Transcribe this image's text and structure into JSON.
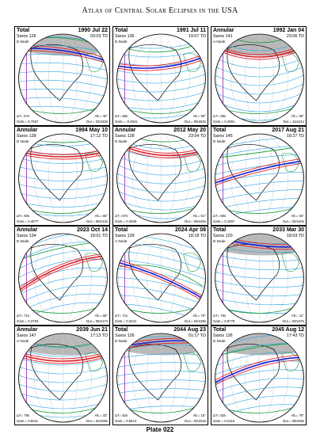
{
  "header": {
    "title": "Atlas of Central Solar Eclipses in the USA"
  },
  "footer": {
    "plate": "Plate 022"
  },
  "colors": {
    "path_total": "#1e1ed2",
    "path_annular": "#e0202a",
    "umbra": "#e0202a",
    "contact": "#20a040",
    "penumbra": "#a020c0",
    "iso": "#2aa6e6",
    "globe_night": "#b8b8b8"
  },
  "panels": [
    {
      "type": "Total",
      "date": "1990 Jul 22",
      "saros": "Saros 126",
      "td": "03:03 TD",
      "node": "D.Node",
      "dt": "ΔT= 57s",
      "alt": "Alt.= 40°",
      "gamma": "Gam.= 0.7597",
      "dur": "Dur.= 02m33s"
    },
    {
      "type": "Total",
      "date": "1991 Jul 11",
      "saros": "Saros 136",
      "td": "19:07 TD",
      "node": "D.Node",
      "dt": "ΔT= 58s",
      "alt": "Alt.= 90°",
      "gamma": "Gam.= -0.0041",
      "dur": "Dur.= 06m53s"
    },
    {
      "type": "Annular",
      "date": "1992 Jan 04",
      "saros": "Saros 141",
      "td": "23:06 TD",
      "node": "A.Node",
      "dt": "ΔT= 58s",
      "alt": "Alt.= 66°",
      "gamma": "Gam.= 0.4091",
      "dur": "Dur.= 11m41s"
    },
    {
      "type": "Annular",
      "date": "1994 May 10",
      "saros": "Saros 128",
      "td": "17:12 TD",
      "node": "D.Node",
      "dt": "ΔT= 60s",
      "alt": "Alt.= 66°",
      "gamma": "Gam.= 0.4077",
      "dur": "Dur.= 06m13s"
    },
    {
      "type": "Annular",
      "date": "2012 May 20",
      "saros": "Saros 128",
      "td": "23:54 TD",
      "node": "D.Node",
      "dt": "ΔT= 67s",
      "alt": "Alt.= 61°",
      "gamma": "Gam.= 0.4828",
      "dur": "Dur.= 05m46s"
    },
    {
      "type": "Total",
      "date": "2017 Aug 21",
      "saros": "Saros 145",
      "td": "18:27 TD",
      "node": "D.Node",
      "dt": "ΔT= 69s",
      "alt": "Alt.= 64°",
      "gamma": "Gam.= 0.4367",
      "dur": "Dur.= 02m40s"
    },
    {
      "type": "Annular",
      "date": "2023 Oct 14",
      "saros": "Saros 134",
      "td": "18:01 TD",
      "node": "D.Node",
      "dt": "ΔT= 71s",
      "alt": "Alt.= 68°",
      "gamma": "Gam.= 0.3753",
      "dur": "Dur.= 05m17s"
    },
    {
      "type": "Total",
      "date": "2024 Apr 08",
      "saros": "Saros 139",
      "td": "18:18 TD",
      "node": "A.Node",
      "dt": "ΔT= 71s",
      "alt": "Alt.= 70°",
      "gamma": "Gam.= 0.3431",
      "dur": "Dur.= 04m28s"
    },
    {
      "type": "Total",
      "date": "2033 Mar 30",
      "saros": "Saros 120",
      "td": "18:03 TD",
      "node": "D.Node",
      "dt": "ΔT= 75s",
      "alt": "Alt.= 11°",
      "gamma": "Gam.= 0.9778",
      "dur": "Dur.= 02m37s"
    },
    {
      "type": "Annular",
      "date": "2039 Jun 21",
      "saros": "Saros 147",
      "td": "17:13 TD",
      "node": "A.Node",
      "dt": "ΔT= 79s",
      "alt": "Alt.= 33°",
      "gamma": "Gam.= 0.8311",
      "dur": "Dur.= 04m05s"
    },
    {
      "type": "Total",
      "date": "2044 Aug 23",
      "saros": "Saros 126",
      "td": "01:17 TD",
      "node": "D.Node",
      "dt": "ΔT= 82s",
      "alt": "Alt.= 15°",
      "gamma": "Gam.= 0.9613",
      "dur": "Dur.= 02m04s"
    },
    {
      "type": "Total",
      "date": "2045 Aug 12",
      "saros": "Saros 136",
      "td": "17:43 TD",
      "node": "D.Node",
      "dt": "ΔT= 82s",
      "alt": "Alt.= 78°",
      "gamma": "Gam.= 0.2116",
      "dur": "Dur.= 06m06s"
    }
  ]
}
